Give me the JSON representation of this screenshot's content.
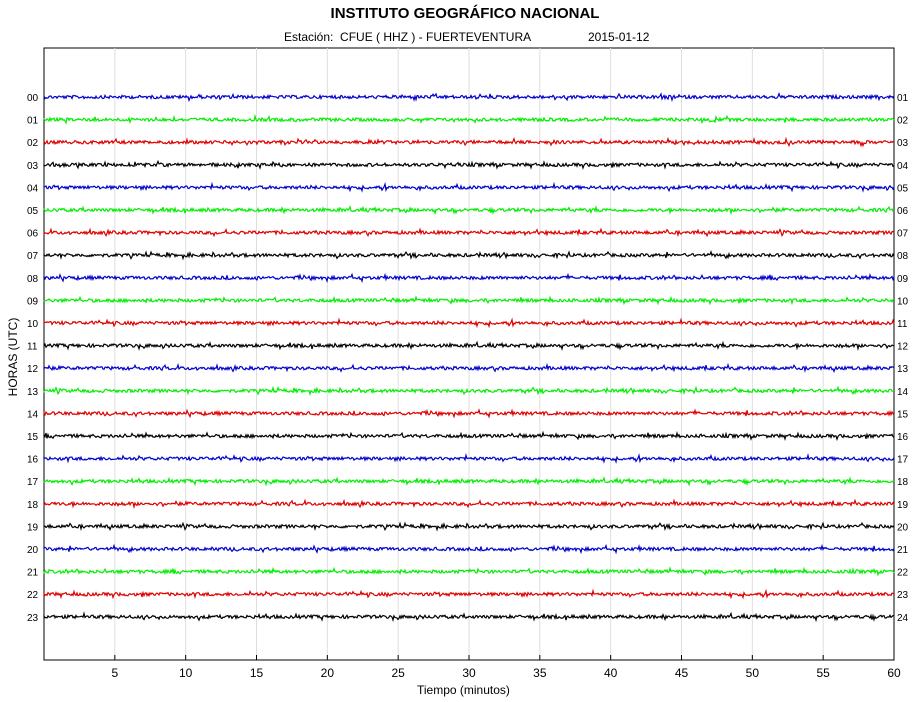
{
  "chart_data": {
    "type": "line",
    "title": "INSTITUTO GEOGRÁFICO NACIONAL",
    "subtitle_station": "Estación:  CFUE ( HHZ ) - FUERTEVENTURA",
    "subtitle_date": "2015-01-12",
    "xlabel": "Tiempo (minutos)",
    "ylabel": "HORAS (UTC)",
    "xlim": [
      0,
      60
    ],
    "x_ticks": [
      5,
      10,
      15,
      20,
      25,
      30,
      35,
      40,
      45,
      50,
      55,
      60
    ],
    "grid": "vertical",
    "left_hour_labels": [
      "00",
      "01",
      "02",
      "03",
      "04",
      "05",
      "06",
      "07",
      "08",
      "09",
      "10",
      "11",
      "12",
      "13",
      "14",
      "15",
      "16",
      "17",
      "18",
      "19",
      "20",
      "21",
      "22",
      "23"
    ],
    "right_hour_labels": [
      "01",
      "02",
      "03",
      "04",
      "05",
      "06",
      "07",
      "08",
      "09",
      "10",
      "11",
      "12",
      "13",
      "14",
      "15",
      "16",
      "17",
      "18",
      "19",
      "20",
      "21",
      "22",
      "23",
      "24"
    ],
    "trace_colors": [
      "#0000cc",
      "#00ee00",
      "#dd0000",
      "#000000"
    ]
  }
}
